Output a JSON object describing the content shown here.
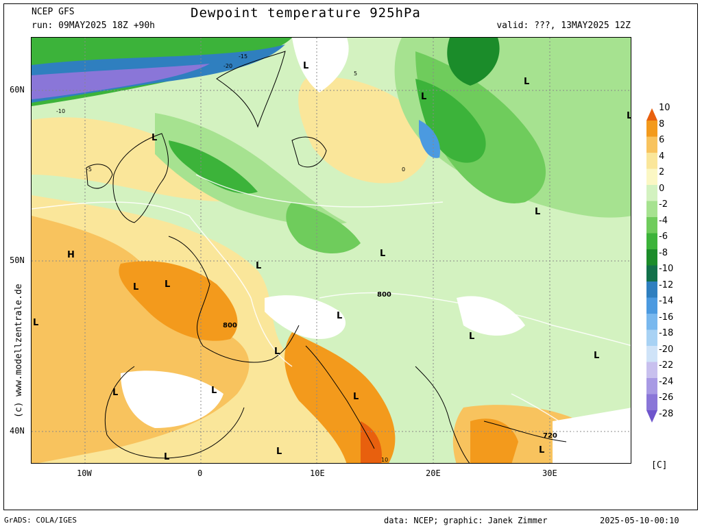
{
  "header": {
    "model": "NCEP GFS",
    "title": "Dewpoint temperature 925hPa",
    "run": "run: 09MAY2025 18Z +90h",
    "valid": "valid: ???, 13MAY2025 12Z"
  },
  "map": {
    "lat_labels": [
      "60N",
      "50N",
      "40N"
    ],
    "lon_labels": [
      "10W",
      "0",
      "10E",
      "20E",
      "30E"
    ],
    "pressure_labels": [
      "800",
      "800",
      "720"
    ],
    "high_low_labels": [
      "H",
      "L",
      "L",
      "L",
      "L",
      "L",
      "L",
      "L",
      "L",
      "L",
      "L",
      "L",
      "L",
      "L",
      "L",
      "L",
      "L",
      "L",
      "L",
      "L",
      "L",
      "L"
    ],
    "contour_values": [
      "-20",
      "-15",
      "-10",
      "-5",
      "0",
      "5",
      "10"
    ]
  },
  "colorbar": {
    "ticks": [
      "10",
      "8",
      "6",
      "4",
      "2",
      "0",
      "-2",
      "-4",
      "-6",
      "-8",
      "-10",
      "-12",
      "-14",
      "-16",
      "-18",
      "-20",
      "-22",
      "-24",
      "-26",
      "-28"
    ],
    "colors": [
      "#e8600e",
      "#f39a1c",
      "#f8c35e",
      "#fae69a",
      "#fbf7c4",
      "#d3f2c0",
      "#a6e290",
      "#6fcc5c",
      "#3cb33a",
      "#1b8c2a",
      "#12704a",
      "#2f7fbf",
      "#4b9ae0",
      "#79b8ee",
      "#a8d2f4",
      "#cfe3f8",
      "#c8c0ee",
      "#a89ae4",
      "#8a76d8",
      "#6e55cc"
    ],
    "unit": "[C]"
  },
  "footer": {
    "software": "GrADS: COLA/IGES",
    "credit": "data: NCEP; graphic: Janek Zimmer",
    "timestamp": "2025-05-10-00:10",
    "watermark": "(c)  www.modellzentrale.de"
  }
}
